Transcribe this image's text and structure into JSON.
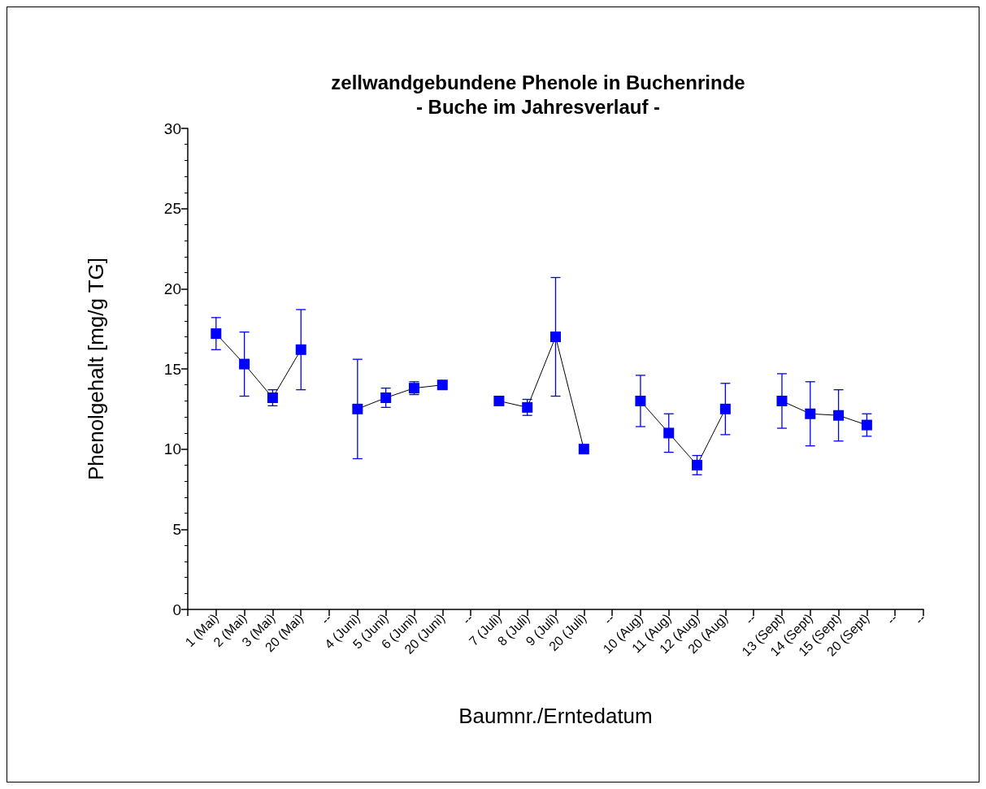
{
  "chart_data": {
    "type": "line",
    "title": "zellwandgebundene Phenole in Buchenrinde\n- Buche im Jahresverlauf -",
    "xlabel": "Baumnr./Erntedatum",
    "ylabel": "Phenolgehalt [mg/g TG]",
    "categories": [
      null,
      "1 (Mai)",
      "2 (Mai)",
      "3 (Mai)",
      "20 (Mai)",
      "--",
      "4 (Juni)",
      "5 (Juni)",
      "6 (Juni)",
      "20 (Juni)",
      "--",
      "7 (Juli)",
      "8 (Juli)",
      "9 (Juli)",
      "20 (Juli)",
      "--",
      "10 (Aug)",
      "11 (Aug)",
      "12 (Aug)",
      "20 (Aug)",
      "--",
      "13 (Sept)",
      "14 (Sept)",
      "15 (Sept)",
      "20 (Sept)",
      "--",
      "--"
    ],
    "series": [
      {
        "color": "#0000ff",
        "values": [
          null,
          17.2,
          15.3,
          13.2,
          16.2,
          null,
          12.5,
          13.2,
          13.8,
          14.0,
          null,
          13.0,
          12.6,
          17.0,
          10.0,
          null,
          13.0,
          11.0,
          9.0,
          12.5,
          null,
          13.0,
          12.2,
          12.1,
          11.5,
          null,
          null
        ],
        "errors": [
          null,
          1.0,
          2.0,
          0.5,
          2.5,
          null,
          3.1,
          0.6,
          0.4,
          0.2,
          null,
          0.15,
          0.5,
          3.7,
          0.15,
          null,
          1.6,
          1.2,
          0.6,
          1.6,
          null,
          1.7,
          2.0,
          1.6,
          0.7,
          null,
          null
        ]
      }
    ],
    "ylim": [
      0,
      30
    ],
    "yticks": [
      0,
      5,
      10,
      15,
      20,
      25,
      30
    ],
    "grid": false,
    "marker": "square",
    "line_style": "solid"
  }
}
